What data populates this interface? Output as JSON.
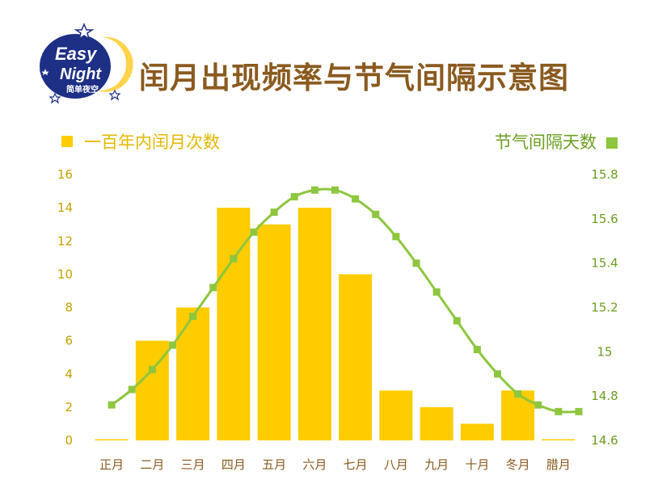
{
  "logo": {
    "line1": "Easy",
    "line2": "Night",
    "line3": "简单夜空"
  },
  "title": "闰月出现频率与节气间隔示意图",
  "colors": {
    "bar": "#ffcc00",
    "line": "#8dc63f",
    "title": "#8a5a1f",
    "left_axis_text": "#c5a100",
    "right_axis_text": "#6c9e22"
  },
  "chart_data": {
    "type": "bar",
    "categories": [
      "正月",
      "二月",
      "三月",
      "四月",
      "五月",
      "六月",
      "七月",
      "八月",
      "九月",
      "十月",
      "冬月",
      "腊月"
    ],
    "series": [
      {
        "name": "一百年内闰月次数",
        "type": "bar",
        "axis": "left",
        "values": [
          0,
          6,
          8,
          14,
          13,
          14,
          10,
          3,
          2,
          1,
          3,
          0
        ]
      },
      {
        "name": "节气间隔天数",
        "type": "line",
        "axis": "right",
        "x": [
          0,
          0.5,
          1,
          1.5,
          2,
          2.5,
          3,
          3.5,
          4,
          4.5,
          5,
          5.5,
          6,
          6.5,
          7,
          7.5,
          8,
          8.5,
          9,
          9.5,
          10,
          10.5,
          11,
          11.5
        ],
        "values": [
          14.76,
          14.83,
          14.92,
          15.03,
          15.16,
          15.29,
          15.42,
          15.54,
          15.63,
          15.7,
          15.73,
          15.73,
          15.69,
          15.62,
          15.52,
          15.4,
          15.27,
          15.14,
          15.01,
          14.9,
          14.81,
          14.76,
          14.73,
          14.73
        ]
      }
    ],
    "y_left": {
      "min": 0,
      "max": 16,
      "ticks": [
        "0",
        "2",
        "4",
        "6",
        "8",
        "10",
        "12",
        "14",
        "16"
      ]
    },
    "y_right": {
      "min": 14.6,
      "max": 15.8,
      "ticks": [
        "14.6",
        "14.8",
        "15",
        "15.2",
        "15.4",
        "15.6",
        "15.8"
      ]
    },
    "grid": false,
    "legend": {
      "left_label": "一百年内闰月次数",
      "right_label": "节气间隔天数",
      "placement": "top"
    }
  }
}
